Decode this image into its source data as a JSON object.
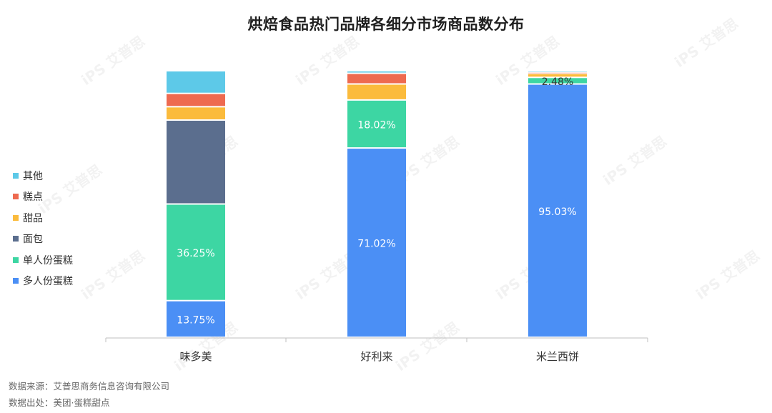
{
  "chart_data": {
    "type": "bar",
    "stacked": true,
    "title": "烘焙食品热门品牌各细分市场商品数分布",
    "xlabel": "",
    "ylabel": "",
    "ylim": [
      0,
      100
    ],
    "grid": false,
    "legend_position": "left",
    "categories": [
      "味多美",
      "好利来",
      "米兰西饼"
    ],
    "series": [
      {
        "name": "多人份蛋糕",
        "color": "#4B8FF5",
        "values": [
          13.75,
          71.02,
          95.03
        ],
        "labels": [
          "13.75%",
          "71.02%",
          "95.03%"
        ]
      },
      {
        "name": "单人份蛋糕",
        "color": "#3DD6A3",
        "values": [
          36.25,
          18.02,
          2.48
        ],
        "labels": [
          "36.25%",
          "18.02%",
          "2.48%"
        ]
      },
      {
        "name": "面包",
        "color": "#5B6E8E",
        "values": [
          31.5,
          0,
          0
        ],
        "labels": [
          "",
          "",
          ""
        ]
      },
      {
        "name": "甜品",
        "color": "#FBBB3C",
        "values": [
          5.0,
          6.0,
          1.49
        ],
        "labels": [
          "",
          "",
          ""
        ]
      },
      {
        "name": "糕点",
        "color": "#EE6A50",
        "values": [
          5.0,
          4.0,
          0.5
        ],
        "labels": [
          "",
          "",
          ""
        ]
      },
      {
        "name": "其他",
        "color": "#5DC9E8",
        "values": [
          8.5,
          0.96,
          0.5
        ],
        "labels": [
          "",
          "",
          ""
        ]
      }
    ]
  },
  "footer": {
    "source": "数据来源：艾普思商务信息咨询有限公司",
    "origin": "数据出处：美团·蛋糕甜点"
  },
  "watermark": "艾普思"
}
